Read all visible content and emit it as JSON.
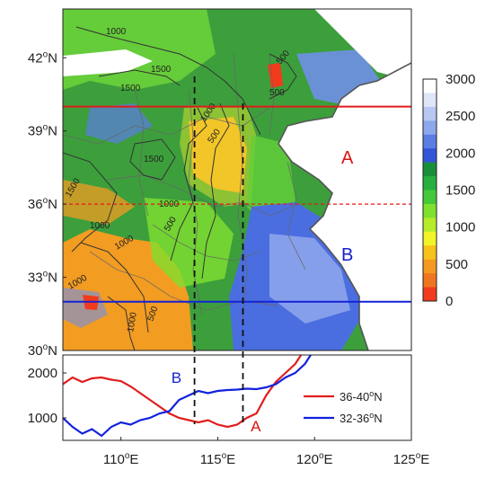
{
  "map": {
    "lat_labels": [
      "42",
      "39",
      "36",
      "33",
      "30"
    ],
    "lon_labels": [
      "110",
      "115",
      "120",
      "125"
    ],
    "lat_suffix": "N",
    "lon_suffix": "E",
    "degree_mark": "o",
    "contour_labels": [
      "1000",
      "1500",
      "1500",
      "500",
      "1000",
      "500",
      "1500",
      "1000",
      "1000",
      "1500",
      "500",
      "1000",
      "1000",
      "500",
      "1000",
      "500"
    ],
    "region_labels": [
      {
        "text": "A",
        "color": "#dd1111"
      },
      {
        "text": "B",
        "color": "#1122cc"
      }
    ],
    "lines": {
      "upper_red_solid_lat": 40,
      "red_dashed_lat": 36,
      "blue_solid_lat": 32,
      "dashed_lon_1": 113.8,
      "dashed_lon_2": 116.3
    }
  },
  "colorbar": {
    "ticks": [
      "3000",
      "2500",
      "2000",
      "1500",
      "1000",
      "500",
      "0"
    ],
    "colors": [
      "#ffffff",
      "#dfe6f8",
      "#b9c8f0",
      "#8da8ea",
      "#5b7ee3",
      "#3355d8",
      "#1a8f3a",
      "#27b03f",
      "#45c83a",
      "#7fe02f",
      "#b5ec2c",
      "#f3f32a",
      "#f6c21c",
      "#f49a20",
      "#f07521",
      "#f23a1c"
    ]
  },
  "chart_data": {
    "type": "line",
    "y_ticks": [
      "2000",
      "1000"
    ],
    "ylim": [
      500,
      2400
    ],
    "xlim": [
      107,
      125
    ],
    "series": [
      {
        "name": "36-40",
        "color": "#e11d1d",
        "x": [
          107,
          107.5,
          108,
          108.5,
          109,
          109.5,
          110,
          110.5,
          111,
          111.5,
          112,
          112.5,
          113,
          113.5,
          114,
          114.5,
          115,
          115.5,
          116,
          116.5,
          117,
          117.5,
          118,
          118.5,
          119,
          119.3
        ],
        "y": [
          1750,
          1900,
          1800,
          1880,
          1900,
          1850,
          1820,
          1700,
          1550,
          1400,
          1250,
          1100,
          1000,
          950,
          900,
          950,
          850,
          800,
          850,
          1000,
          1100,
          1500,
          1800,
          2000,
          2200,
          2400
        ]
      },
      {
        "name": "32-36",
        "color": "#1122dd",
        "x": [
          107,
          107.5,
          108,
          108.5,
          109,
          109.5,
          110,
          110.5,
          111,
          111.5,
          112,
          112.5,
          113,
          113.5,
          114,
          114.5,
          115,
          115.5,
          116,
          116.5,
          117,
          117.5,
          118,
          118.5,
          119,
          119.5,
          119.8
        ],
        "y": [
          1000,
          800,
          650,
          750,
          600,
          800,
          900,
          850,
          950,
          1000,
          1100,
          1150,
          1400,
          1500,
          1600,
          1550,
          1600,
          1620,
          1630,
          1650,
          1640,
          1680,
          1750,
          1900,
          2000,
          2200,
          2400
        ]
      }
    ],
    "annotations": [
      {
        "text": "A",
        "color": "#dd1111"
      },
      {
        "text": "B",
        "color": "#1122cc"
      }
    ],
    "legend": [
      "36-40",
      "32-36"
    ],
    "legend_suffix": "N",
    "legend_position": "right"
  }
}
